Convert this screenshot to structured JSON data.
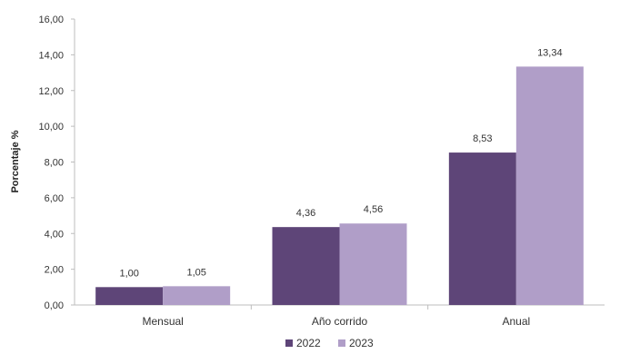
{
  "chart_data": {
    "type": "bar",
    "categories": [
      "Mensual",
      "Año corrido",
      "Anual"
    ],
    "series": [
      {
        "name": "2022",
        "values": [
          1.0,
          4.36,
          8.53
        ],
        "labels": [
          "1,00",
          "4,36",
          "8,53"
        ],
        "color": "#5e4578"
      },
      {
        "name": "2023",
        "values": [
          1.05,
          4.56,
          13.34
        ],
        "labels": [
          "1,05",
          "4,56",
          "13,34"
        ],
        "color": "#b09ec8"
      }
    ],
    "ylabel": "Porcentaje %",
    "ylim": [
      0,
      16
    ],
    "yticks": [
      "0,00",
      "2,00",
      "4,00",
      "6,00",
      "8,00",
      "10,00",
      "12,00",
      "14,00",
      "16,00"
    ],
    "grid": false,
    "legend_position": "bottom"
  }
}
